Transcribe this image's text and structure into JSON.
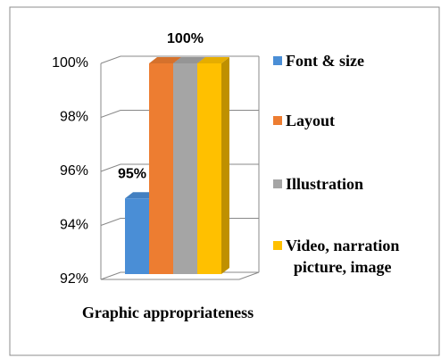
{
  "chart_data": {
    "type": "bar3d",
    "categories": [
      "Graphic appropriateness"
    ],
    "series": [
      {
        "name": "Font & size",
        "color": "#4a8ed6",
        "values": [
          95
        ],
        "value_labels": [
          "95%"
        ]
      },
      {
        "name": "Layout",
        "color": "#ed7d31",
        "values": [
          100
        ]
      },
      {
        "name": "Illustration",
        "color": "#a5a5a5",
        "values": [
          100
        ],
        "value_labels": [
          "100%"
        ]
      },
      {
        "name": "Video, narration\npicture, image",
        "color": "#ffc000",
        "values": [
          100
        ]
      }
    ],
    "ylim": [
      92,
      100
    ],
    "yticks": [
      {
        "value": 92,
        "label": "92%"
      },
      {
        "value": 94,
        "label": "94%"
      },
      {
        "value": 96,
        "label": "96%"
      },
      {
        "value": 98,
        "label": "98%"
      },
      {
        "value": 100,
        "label": "100%"
      }
    ],
    "grid": true,
    "legend": "right"
  }
}
